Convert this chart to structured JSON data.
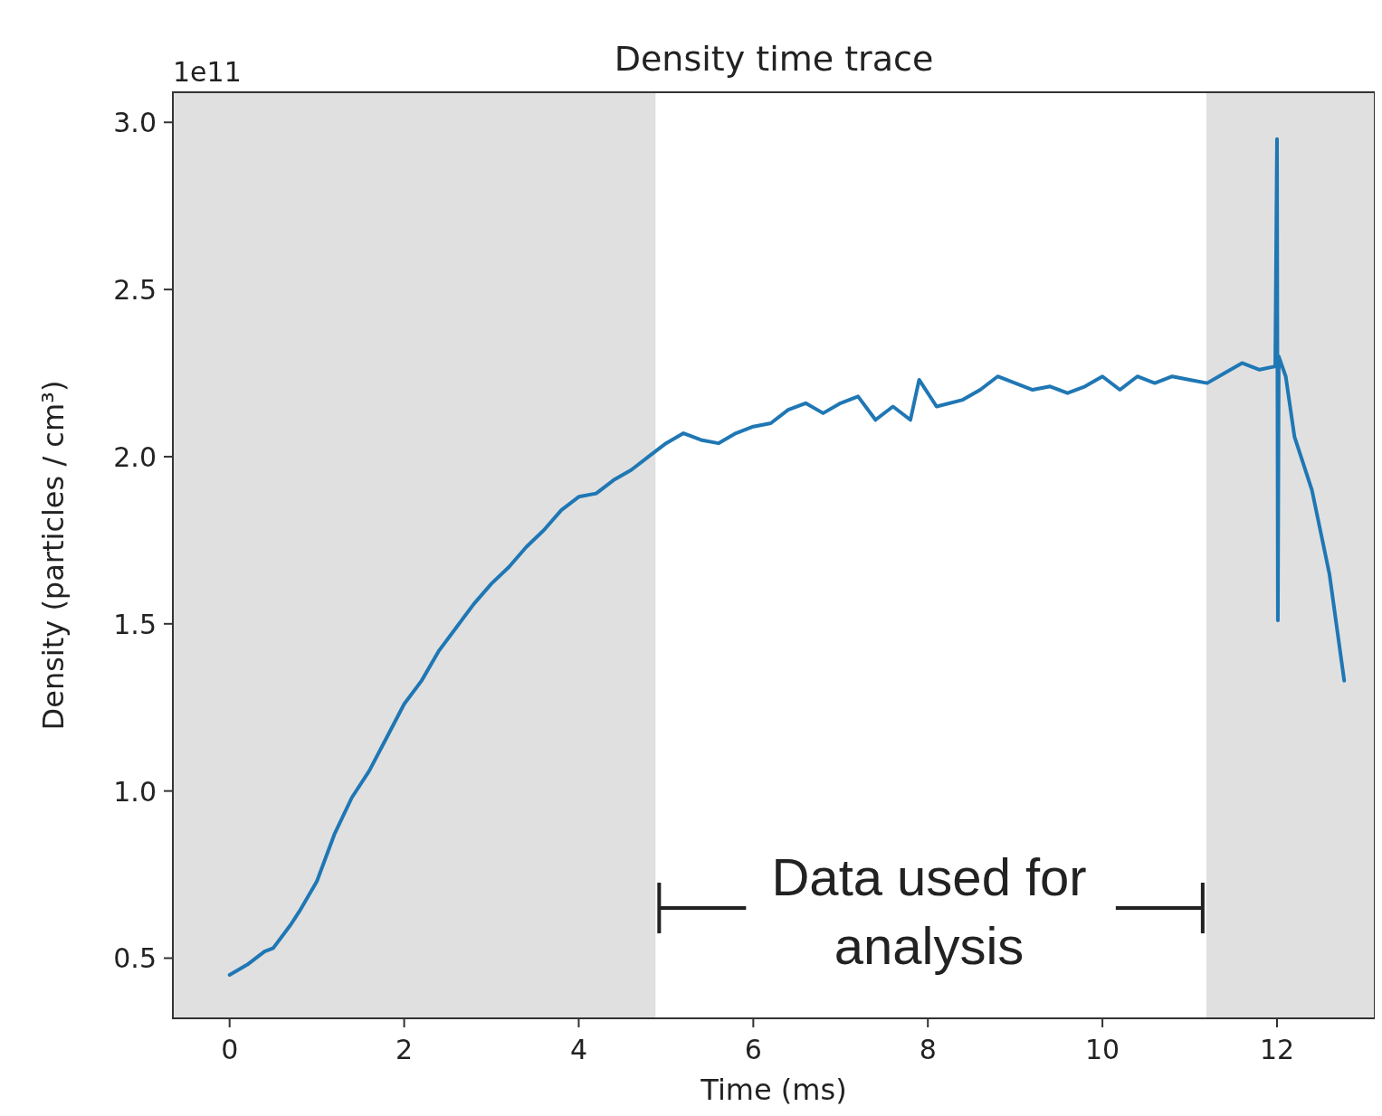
{
  "chart_data": {
    "type": "line",
    "title": "Density time trace",
    "xlabel": "Time (ms)",
    "ylabel": "Density (particles / cm³)",
    "annotations": [
      "1e11",
      {
        "text": "Data used for analysis",
        "x": 4.88,
        "y": 0.65
      }
    ],
    "xlim": [
      -0.65,
      13.12
    ],
    "ylim": [
      0.32,
      3.09
    ],
    "xticks": [
      0,
      2,
      4,
      6,
      8,
      10,
      12
    ],
    "yticks": [
      {
        "value": 0.5,
        "label": "0.5"
      },
      {
        "value": 1,
        "label": "1.0"
      },
      {
        "value": 1.5,
        "label": "1.5"
      },
      {
        "value": 2,
        "label": "2.0"
      },
      {
        "value": 2.5,
        "label": "2.5"
      },
      {
        "value": 3,
        "label": "3.0"
      }
    ],
    "grid": false,
    "marker": "none",
    "line_style": "solid",
    "bands": [
      {
        "axis": "x",
        "from": -0.65,
        "to": 4.88,
        "color": "#e0e0e0"
      },
      {
        "axis": "x",
        "from": 11.19,
        "to": 13.12,
        "color": "#e0e0e0"
      }
    ],
    "series": [
      {
        "color": "#1f77b4",
        "x": [
          0,
          0.2,
          0.4,
          0.5,
          0.7,
          0.8,
          1.0,
          1.2,
          1.4,
          1.6,
          1.8,
          2.0,
          2.2,
          2.4,
          2.6,
          2.8,
          3.0,
          3.2,
          3.4,
          3.6,
          3.8,
          4.0,
          4.2,
          4.4,
          4.6,
          4.8,
          5.0,
          5.2,
          5.4,
          5.6,
          5.8,
          6.0,
          6.2,
          6.4,
          6.6,
          6.8,
          7.0,
          7.2,
          7.4,
          7.6,
          7.8,
          7.9,
          8.1,
          8.4,
          8.6,
          8.8,
          9.0,
          9.2,
          9.4,
          9.6,
          9.8,
          10.0,
          10.2,
          10.4,
          10.6,
          10.8,
          11.0,
          11.2,
          11.4,
          11.6,
          11.8,
          11.98,
          12.0,
          12.01,
          12.02,
          12.1,
          12.2,
          12.4,
          12.6,
          12.77
        ],
        "values": [
          0.45,
          0.48,
          0.52,
          0.53,
          0.6,
          0.64,
          0.73,
          0.87,
          0.98,
          1.06,
          1.16,
          1.26,
          1.33,
          1.42,
          1.49,
          1.56,
          1.62,
          1.67,
          1.73,
          1.78,
          1.84,
          1.88,
          1.89,
          1.93,
          1.96,
          2.0,
          2.04,
          2.07,
          2.05,
          2.04,
          2.07,
          2.09,
          2.1,
          2.14,
          2.16,
          2.13,
          2.16,
          2.18,
          2.11,
          2.15,
          2.11,
          2.23,
          2.15,
          2.17,
          2.2,
          2.24,
          2.22,
          2.2,
          2.21,
          2.19,
          2.21,
          2.24,
          2.2,
          2.24,
          2.22,
          2.24,
          2.23,
          2.22,
          2.25,
          2.28,
          2.26,
          2.27,
          2.95,
          1.51,
          2.3,
          2.24,
          2.06,
          1.9,
          1.65,
          1.33
        ]
      }
    ]
  }
}
